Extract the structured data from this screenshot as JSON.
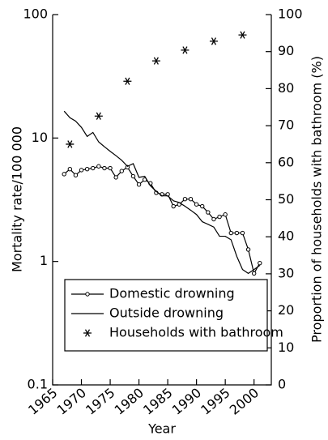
{
  "chart_data": {
    "type": "line",
    "xlabel": "Year",
    "ylabel": "Mortality rate/100 000",
    "y2label": "Proportion of households with bathroom (%)",
    "xlim": [
      1965,
      2003
    ],
    "xticks": [
      1965,
      1970,
      1975,
      1980,
      1985,
      1990,
      1995,
      2000
    ],
    "ylim": [
      0.1,
      100
    ],
    "yscale": "log",
    "yticks": [
      0.1,
      1,
      10,
      100
    ],
    "y2lim": [
      0,
      100
    ],
    "y2ticks": [
      0,
      10,
      20,
      30,
      40,
      50,
      60,
      70,
      80,
      90,
      100
    ],
    "legend": "lower left",
    "series": [
      {
        "name": "Domestic drowning",
        "color": "#000000",
        "marker": "circle",
        "line": true,
        "x": [
          1967,
          1968,
          1969,
          1970,
          1971,
          1972,
          1973,
          1974,
          1975,
          1976,
          1977,
          1978,
          1979,
          1980,
          1981,
          1982,
          1983,
          1984,
          1985,
          1986,
          1987,
          1988,
          1989,
          1990,
          1991,
          1992,
          1993,
          1994,
          1995,
          1996,
          1997,
          1998,
          1999,
          2000,
          2001
        ],
        "values": [
          5.1,
          5.6,
          5.0,
          5.5,
          5.6,
          5.7,
          5.9,
          5.7,
          5.7,
          4.8,
          5.4,
          5.8,
          4.9,
          4.2,
          4.6,
          4.3,
          3.6,
          3.5,
          3.5,
          2.8,
          2.9,
          3.2,
          3.2,
          2.9,
          2.8,
          2.5,
          2.2,
          2.3,
          2.4,
          1.7,
          1.7,
          1.7,
          1.25,
          0.8,
          0.97
        ]
      },
      {
        "name": "Outside drowning",
        "color": "#000000",
        "marker": "none",
        "line": true,
        "x": [
          1967,
          1968,
          1969,
          1970,
          1971,
          1972,
          1973,
          1974,
          1975,
          1976,
          1977,
          1978,
          1979,
          1980,
          1981,
          1982,
          1983,
          1984,
          1985,
          1986,
          1987,
          1988,
          1989,
          1990,
          1991,
          1992,
          1993,
          1994,
          1995,
          1996,
          1997,
          1998,
          1999,
          2000,
          2001
        ],
        "values": [
          16.5,
          14.6,
          13.7,
          12.2,
          10.3,
          11.1,
          9.3,
          8.5,
          7.8,
          7.2,
          6.6,
          5.9,
          6.2,
          4.8,
          4.9,
          4.1,
          3.7,
          3.4,
          3.4,
          3.1,
          3.0,
          2.8,
          2.6,
          2.4,
          2.1,
          2.0,
          1.9,
          1.6,
          1.6,
          1.5,
          1.1,
          0.86,
          0.8,
          0.86,
          0.93
        ]
      },
      {
        "name": "Households with bathroom",
        "color": "#000000",
        "marker": "asterisk",
        "line": false,
        "axis": "y2",
        "x": [
          1968,
          1973,
          1978,
          1983,
          1988,
          1993,
          1998
        ],
        "values": [
          65,
          72.6,
          82,
          87.5,
          90.4,
          92.8,
          94.5
        ]
      }
    ]
  }
}
